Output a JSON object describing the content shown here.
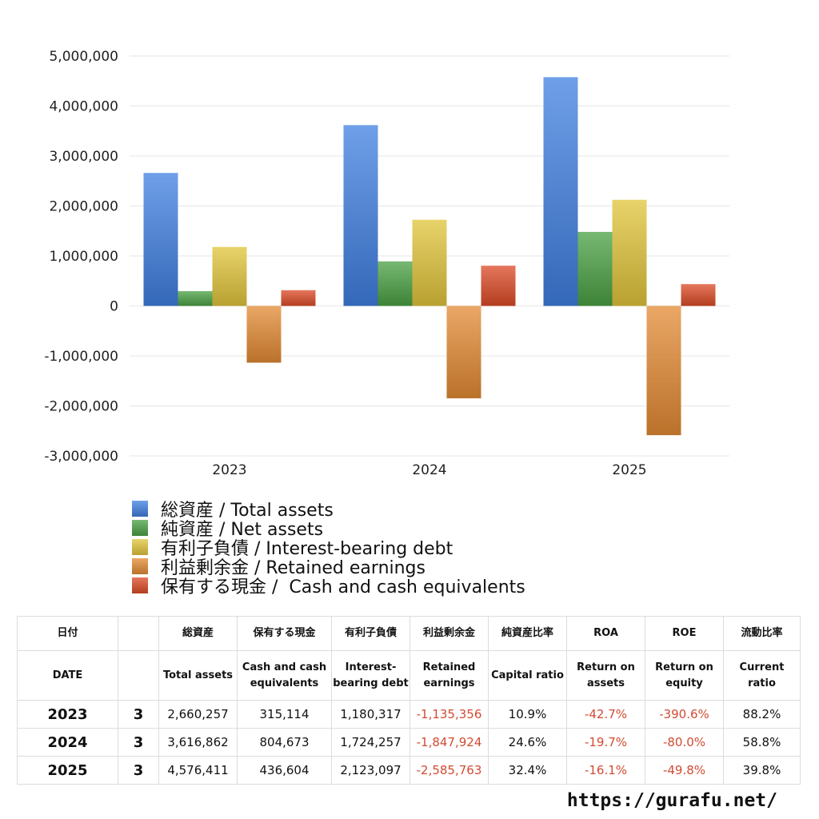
{
  "chart_data": {
    "type": "bar",
    "categories": [
      "2023",
      "2024",
      "2025"
    ],
    "ylim": [
      -3000000,
      5000000
    ],
    "yticks": [
      "5,000,000",
      "4,000,000",
      "3,000,000",
      "2,000,000",
      "1,000,000",
      "0",
      "-1,000,000",
      "-2,000,000",
      "-3,000,000"
    ],
    "ytick_values": [
      5000000,
      4000000,
      3000000,
      2000000,
      1000000,
      0,
      -1000000,
      -2000000,
      -3000000
    ],
    "grid": true,
    "legend_position": "bottom",
    "series": [
      {
        "name": "総資産 / Total assets",
        "values": [
          2660257,
          3616862,
          4576411
        ],
        "color": "#3f7fe0"
      },
      {
        "name": "純資産 / Net assets",
        "values": [
          296000,
          891000,
          1481000
        ],
        "color": "#4aa043"
      },
      {
        "name": "有利子負債 / Interest-bearing debt",
        "values": [
          1180317,
          1724257,
          2123097
        ],
        "color": "#e0c43a"
      },
      {
        "name": "利益剰余金 / Retained earnings",
        "values": [
          -1135356,
          -1847924,
          -2585763
        ],
        "color": "#e38a33"
      },
      {
        "name": "保有する現金 /  Cash and cash equivalents",
        "values": [
          315114,
          804673,
          436604
        ],
        "color": "#dc4a26"
      }
    ]
  },
  "table": {
    "headers_ja": [
      "日付",
      "",
      "総資産",
      "保有する現金",
      "有利子負債",
      "利益剰余金",
      "純資産比率",
      "ROA",
      "ROE",
      "流動比率"
    ],
    "headers_en": [
      "DATE",
      "",
      "Total assets",
      "Cash and cash equivalents",
      "Interest-bearing debt",
      "Retained earnings",
      "Capital ratio",
      "Return on assets",
      "Return on equity",
      "Current ratio"
    ],
    "rows": [
      {
        "year": "2023",
        "month": "3",
        "total_assets": "2,660,257",
        "cash": "315,114",
        "debt": "1,180,317",
        "retained": "-1,135,356",
        "capital_ratio": "10.9%",
        "roa": "-42.7%",
        "roe": "-390.6%",
        "current_ratio": "88.2%"
      },
      {
        "year": "2024",
        "month": "3",
        "total_assets": "3,616,862",
        "cash": "804,673",
        "debt": "1,724,257",
        "retained": "-1,847,924",
        "capital_ratio": "24.6%",
        "roa": "-19.7%",
        "roe": "-80.0%",
        "current_ratio": "58.8%"
      },
      {
        "year": "2025",
        "month": "3",
        "total_assets": "4,576,411",
        "cash": "436,604",
        "debt": "2,123,097",
        "retained": "-2,585,763",
        "capital_ratio": "32.4%",
        "roa": "-16.1%",
        "roe": "-49.8%",
        "current_ratio": "39.8%"
      }
    ]
  },
  "site_url": "https://gurafu.net/"
}
